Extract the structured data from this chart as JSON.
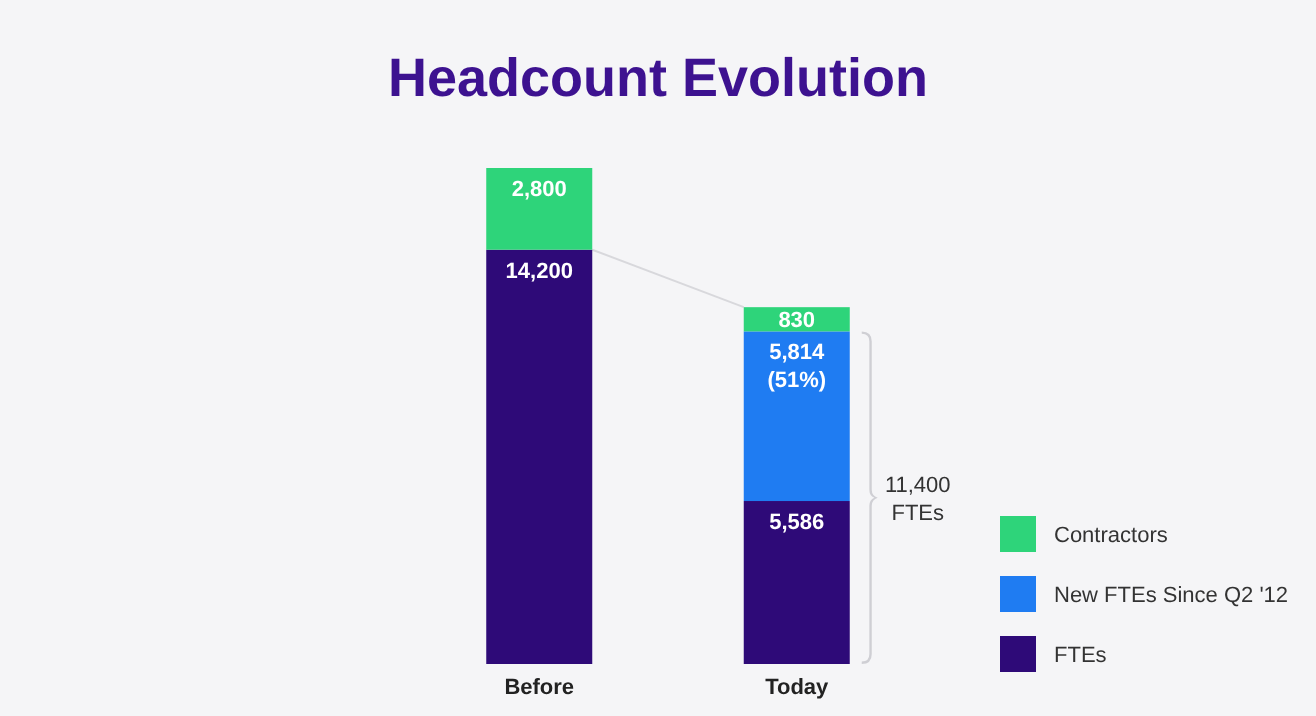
{
  "chart_data": {
    "type": "bar",
    "title": "Headcount Evolution",
    "stacked": true,
    "categories": [
      "Before",
      "Today"
    ],
    "series": [
      {
        "name": "FTEs",
        "color": "#2e0a78",
        "values": [
          14200,
          5586
        ],
        "value_labels": [
          "14,200",
          "5,586"
        ]
      },
      {
        "name": "New FTEs Since Q2 '12",
        "color": "#1f7cf2",
        "values": [
          null,
          5814
        ],
        "value_labels": [
          null,
          "5,814 (51%)"
        ]
      },
      {
        "name": "Contractors",
        "color": "#2ed47a",
        "values": [
          2800,
          830
        ],
        "value_labels": [
          "2,800",
          "830"
        ]
      }
    ],
    "legend": "bottom right",
    "annotations": [
      "11,400 FTEs"
    ]
  }
}
